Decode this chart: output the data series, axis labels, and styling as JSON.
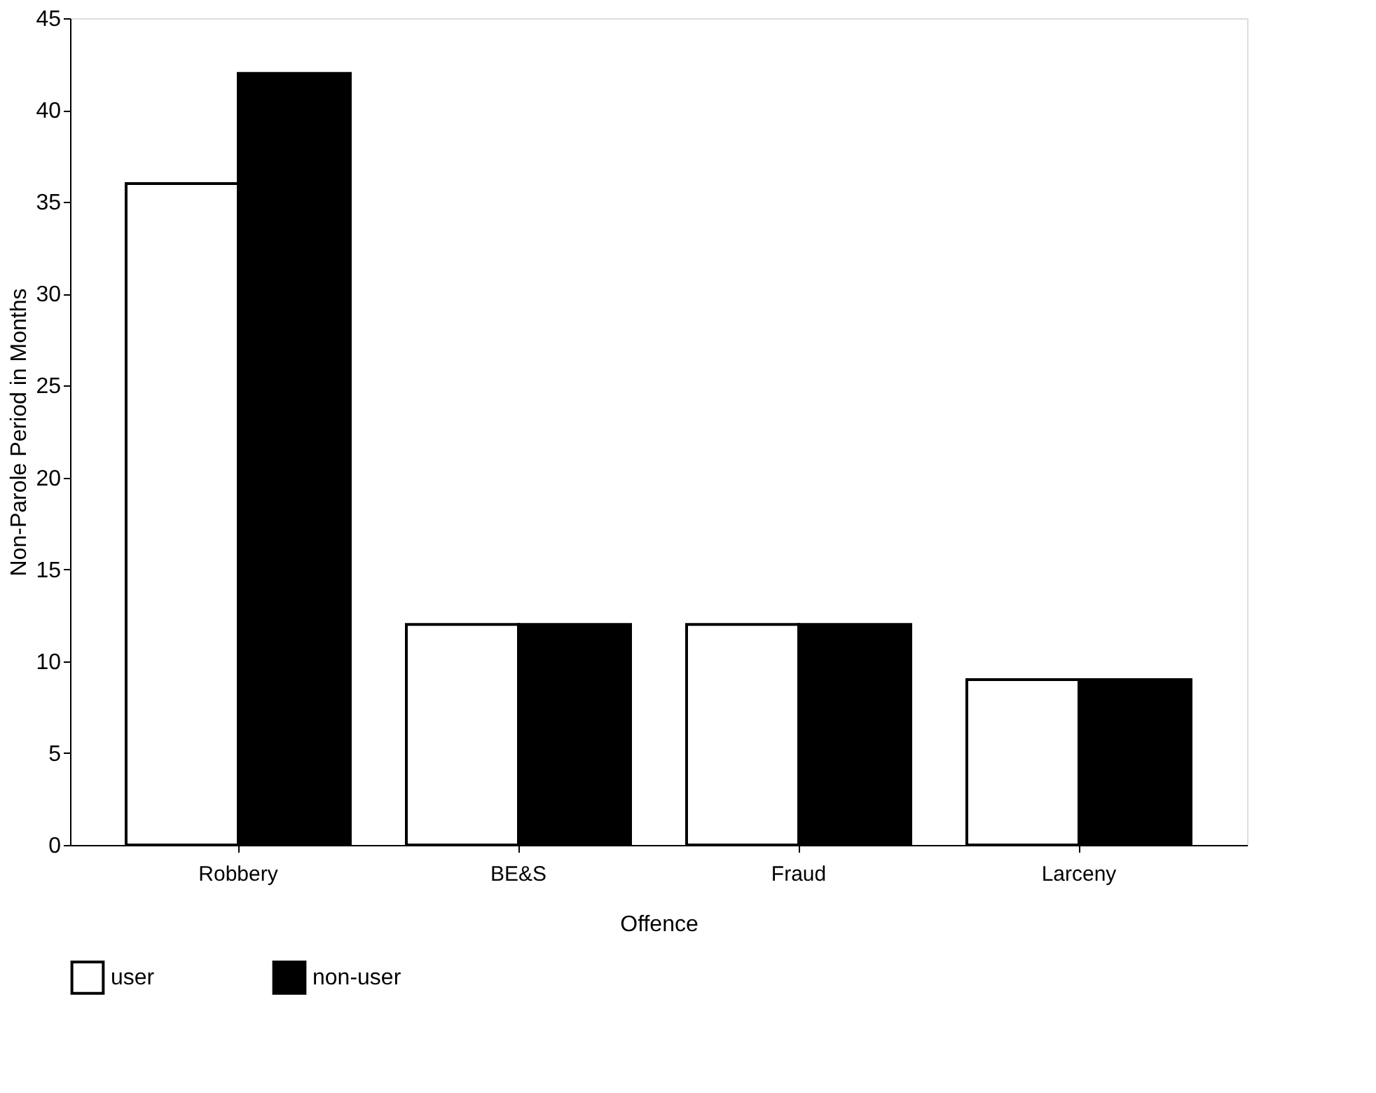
{
  "chart_data": {
    "type": "bar",
    "xlabel": "Offence",
    "ylabel": "Non-Parole Period in Months",
    "categories": [
      "Robbery",
      "BE&S",
      "Fraud",
      "Larceny"
    ],
    "series": [
      {
        "name": "user",
        "color": "#ffffff",
        "values": [
          36,
          12,
          12,
          9
        ]
      },
      {
        "name": "non-user",
        "color": "#000000",
        "values": [
          42,
          12,
          12,
          9
        ]
      }
    ],
    "ylim": [
      0,
      45
    ],
    "yticks": [
      0,
      5,
      10,
      15,
      20,
      25,
      30,
      35,
      40,
      45
    ],
    "grid": false,
    "legend": "bottom left"
  }
}
